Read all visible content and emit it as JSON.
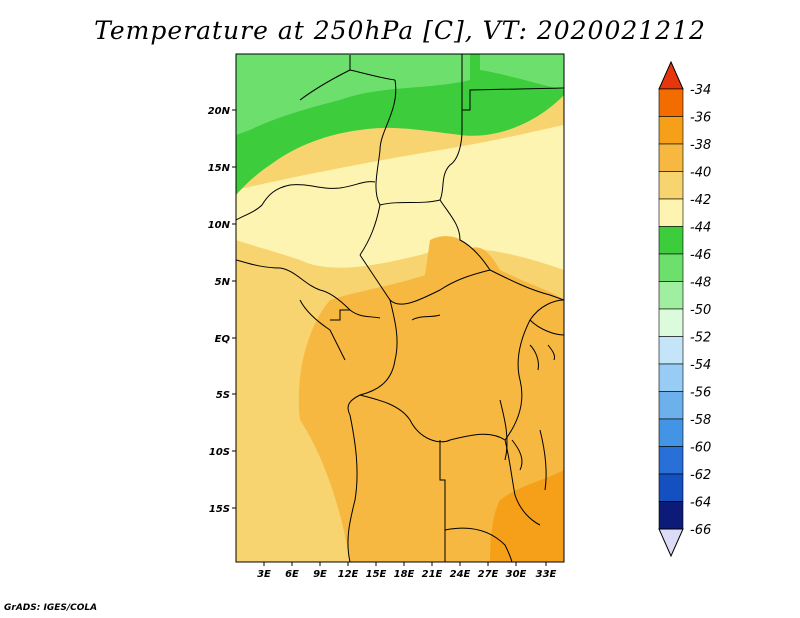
{
  "title": "Temperature at 250hPa [C], VT: 2020021212",
  "credit": "GrADS: IGES/COLA",
  "lat_ticks": [
    "20N",
    "15N",
    "10N",
    "5N",
    "EQ",
    "5S",
    "10S",
    "15S"
  ],
  "lon_ticks": [
    "3E",
    "6E",
    "9E",
    "12E",
    "15E",
    "18E",
    "21E",
    "24E",
    "27E",
    "30E",
    "33E"
  ],
  "colorbar": {
    "labels": [
      "-34",
      "-36",
      "-38",
      "-40",
      "-42",
      "-44",
      "-46",
      "-48",
      "-50",
      "-52",
      "-54",
      "-56",
      "-58",
      "-60",
      "-62",
      "-64",
      "-66"
    ],
    "colors": [
      "#e0421a",
      "#f26c00",
      "#f6a01a",
      "#f6b840",
      "#f8d470",
      "#fcf4b0",
      "#3ccc3c",
      "#6cdf6c",
      "#a0eea0",
      "#dcfadc",
      "#c4e4f8",
      "#98ccf4",
      "#6cb0ec",
      "#4494e6",
      "#2870d8",
      "#1450c0",
      "#0c1a78"
    ],
    "top_cap_color": "#e8360c",
    "bottom_cap_color": "#dcdcf6"
  },
  "legend_colors": {
    "ocean": "#f8d470",
    "sahara_green": "#3ccc3c",
    "light_green": "#6cdf6c",
    "pale": "#fcf4b0",
    "mid": "#f6b840",
    "south_orange": "#f6a01a"
  }
}
